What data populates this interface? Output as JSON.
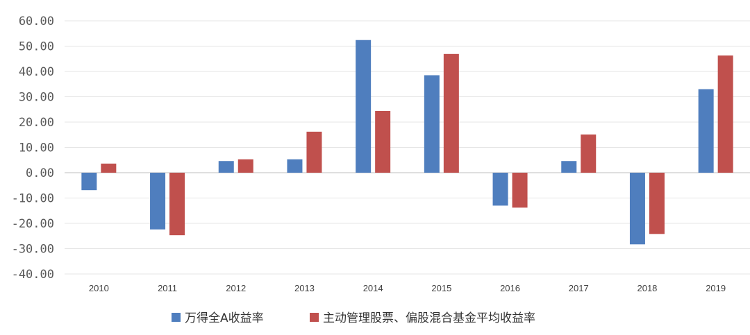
{
  "chart_data": {
    "type": "bar",
    "categories": [
      "2010",
      "2011",
      "2012",
      "2013",
      "2014",
      "2015",
      "2016",
      "2017",
      "2018",
      "2019"
    ],
    "series": [
      {
        "name": "万得全A收益率",
        "color": "#4F7EBE",
        "values": [
          -6.9,
          -22.4,
          4.6,
          5.3,
          52.4,
          38.5,
          -13.0,
          4.6,
          -28.3,
          33.0
        ]
      },
      {
        "name": "主动管理股票、偏股混合基金平均收益率",
        "color": "#C0504D",
        "values": [
          3.6,
          -24.7,
          5.3,
          16.2,
          24.4,
          46.9,
          -13.8,
          15.1,
          -24.2,
          46.3
        ]
      }
    ],
    "yticks": [
      "60.00",
      "50.00",
      "40.00",
      "30.00",
      "20.00",
      "10.00",
      "0.00",
      "-10.00",
      "-20.00",
      "-30.00",
      "-40.00"
    ],
    "ylim": [
      -40,
      60
    ],
    "grid": true,
    "legend_position": "bottom-center"
  }
}
